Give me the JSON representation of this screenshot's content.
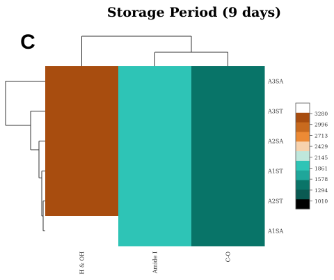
{
  "chart_data": {
    "type": "heatmap",
    "title": "Storage Period (9 days)",
    "panel_label": "C",
    "columns": [
      "H & OH",
      "Amide I",
      "C-O"
    ],
    "rows": [
      "A3SA",
      "A3ST",
      "A2SA",
      "A1ST",
      "A2ST",
      "A1SA"
    ],
    "values": [
      [
        3160,
        1854,
        1260
      ],
      [
        3160,
        1854,
        1260
      ],
      [
        3160,
        1854,
        1260
      ],
      [
        3160,
        1854,
        1260
      ],
      [
        3160,
        1854,
        1260
      ],
      [
        null,
        1854,
        1260
      ]
    ],
    "value_labels": [
      "3280",
      "2996",
      "2713",
      "2429",
      "2145",
      "1861",
      "1578",
      "1294",
      "1010"
    ],
    "value_range": [
      1010,
      3280
    ],
    "colors": {
      "h_oh": "#a84d0f",
      "amide": "#2ec4b6",
      "co": "#087468",
      "scale": [
        "#ffffff",
        "#a84d0f",
        "#c86a1e",
        "#ec8a35",
        "#f7d2ad",
        "#bfe7dc",
        "#2ec4b6",
        "#1fa69a",
        "#0a7468",
        "#0a5a52",
        "#000000"
      ]
    },
    "legend_position": "right",
    "dendrograms": {
      "rows": "left",
      "columns": "top"
    },
    "grid": false
  }
}
